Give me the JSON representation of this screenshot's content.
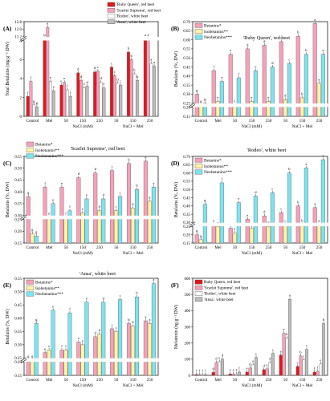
{
  "figure": {
    "title": "",
    "series_colors": [
      "#e4161c",
      "#f7a1b8",
      "#fff3a8",
      "#7de3ef",
      "#bdbdbd",
      "#ffffff"
    ]
  },
  "chart_data": [
    {
      "panel": "(A)",
      "type": "bar",
      "title": "",
      "ylabel": "Total Betalains (mg g⁻¹ DW)",
      "ylim": [
        0,
        12.8
      ],
      "axis_break": [
        8,
        11.2
      ],
      "yticks": [
        "0",
        "2",
        "4",
        "6",
        "8",
        "11.2",
        "12.0",
        "12.8"
      ],
      "categories": [
        "Control",
        "Mel",
        "50",
        "150",
        "250",
        "50",
        "150",
        "250"
      ],
      "groups": [
        "NaCl (mM)",
        "NaCl + Mel"
      ],
      "legend_position": "top-right",
      "series": [
        {
          "name": "'Ruby Queen', red beet",
          "color": "#e4161c",
          "values": [
            2.1,
            10.6,
            3.3,
            4.6,
            4.7,
            5.2,
            6.8,
            8.2
          ],
          "letters": [
            "f",
            "b",
            "e",
            "d",
            "d",
            "c",
            "b",
            "a"
          ]
        },
        {
          "name": "'Scarlet Supreme', red beet",
          "color": "#f7a1b8",
          "values": [
            3.7,
            12.2,
            3.6,
            3.8,
            4.8,
            4.3,
            6.0,
            9.0
          ],
          "letters": [
            "f",
            "a",
            "e",
            "d",
            "c",
            "c",
            "b",
            "a"
          ]
        },
        {
          "name": "'Rodeo', white beet",
          "color": "#ffffff",
          "values": [
            1.2,
            3.7,
            2.8,
            3.0,
            3.6,
            3.5,
            4.5,
            5.6
          ],
          "letters": [
            "g",
            "e",
            "f",
            "e",
            "d",
            "d",
            "b",
            "a"
          ]
        },
        {
          "name": "'Ansa', white beet",
          "color": "#bdbdbd",
          "values": [
            1.0,
            2.7,
            2.1,
            3.2,
            3.0,
            3.3,
            3.8,
            5.3
          ],
          "letters": [
            "g",
            "e",
            "f",
            "d",
            "e",
            "c",
            "b",
            "a"
          ]
        }
      ]
    },
    {
      "panel": "(B)",
      "type": "bar",
      "title": "'Ruby Queen', red beet",
      "ylabel": "Betalains (%, DW)",
      "ylim": [
        0.15,
        0.7
      ],
      "axis_break": [
        0.2,
        0.25
      ],
      "yticks": [
        "0.15",
        "0.20",
        "0.25",
        "0.30",
        "0.35",
        "0.40",
        "0.45",
        "0.50",
        "0.55",
        "0.60",
        "0.65",
        "0.70"
      ],
      "categories": [
        "Control",
        "Mel",
        "50",
        "150",
        "250",
        "50",
        "150",
        "250"
      ],
      "groups": [
        "NaCl (mM)",
        "NaCl + Mel"
      ],
      "legend_position": "top-left",
      "series": [
        {
          "name": "Betanins*",
          "color": "#f7a1b8",
          "values": [
            0.3,
            0.43,
            0.52,
            0.55,
            0.57,
            0.59,
            0.62,
            0.69
          ],
          "letters": [
            "g",
            "f",
            "e",
            "d",
            "d",
            "c",
            "b",
            "a"
          ]
        },
        {
          "name": "Isobetanins**",
          "color": "#fff3a8",
          "values": [
            0.24,
            0.26,
            0.24,
            0.26,
            0.26,
            0.27,
            0.28,
            0.36
          ],
          "letters": [
            "g",
            "e",
            "f",
            "e",
            "e",
            "d",
            "b",
            "a"
          ]
        },
        {
          "name": "Neobetanins***",
          "color": "#7de3ef",
          "values": [
            0.25,
            0.37,
            0.39,
            0.43,
            0.45,
            0.47,
            0.52,
            0.52
          ],
          "letters": [
            "g",
            "e",
            "f",
            "e",
            "d",
            "c",
            "b",
            "a"
          ]
        }
      ]
    },
    {
      "panel": "(C)",
      "type": "bar",
      "title": "'Scarlet Supreme', red beet",
      "ylabel": "Betalains (%, DW)",
      "ylim": [
        0.15,
        0.55
      ],
      "axis_break": [
        0.25,
        0.3
      ],
      "yticks": [
        "0.15",
        "0.20",
        "0.25",
        "0.30",
        "0.35",
        "0.40",
        "0.45",
        "0.50",
        "0.55"
      ],
      "categories": [
        "Control",
        "Mel",
        "50",
        "150",
        "250",
        "50",
        "150",
        "250"
      ],
      "groups": [
        "NaCl (mM)",
        "NaCl + Mel"
      ],
      "legend_position": "top-left",
      "series": [
        {
          "name": "Betanins*",
          "color": "#f7a1b8",
          "values": [
            0.38,
            0.42,
            0.42,
            0.46,
            0.48,
            0.49,
            0.52,
            0.53
          ],
          "letters": [
            "g",
            "f",
            "e",
            "d",
            "d",
            "c",
            "b",
            "a"
          ]
        },
        {
          "name": "Isobetanins**",
          "color": "#fff3a8",
          "values": [
            0.19,
            0.29,
            0.29,
            0.31,
            0.32,
            0.32,
            0.33,
            0.36
          ],
          "letters": [
            "g",
            "e",
            "f",
            "e",
            "d",
            "c",
            "b",
            "a"
          ]
        },
        {
          "name": "Neobetanins***",
          "color": "#7de3ef",
          "values": [
            0.18,
            0.35,
            0.32,
            0.37,
            0.37,
            0.38,
            0.41,
            0.42
          ],
          "letters": [
            "g",
            "e",
            "f",
            "e",
            "d",
            "c",
            "b",
            "a"
          ]
        }
      ]
    },
    {
      "panel": "(D)",
      "type": "bar",
      "title": "'Rodeo', white beet",
      "ylabel": "Betalains (%, DW)",
      "ylim": [
        0.15,
        0.7
      ],
      "axis_break": [
        0.25,
        0.3
      ],
      "yticks": [
        "0.15",
        "0.20",
        "0.25",
        "0.30",
        "0.35",
        "0.40",
        "0.45",
        "0.50",
        "0.55",
        "0.60",
        "0.65",
        "0.70"
      ],
      "categories": [
        "Control",
        "Mel",
        "50",
        "150",
        "250",
        "50",
        "150",
        "250"
      ],
      "groups": [
        "NaCl (mM)",
        "NaCl + Mel"
      ],
      "legend_position": "top-left",
      "series": [
        {
          "name": "Betanins*",
          "color": "#f7a1b8",
          "values": [
            0.2,
            0.28,
            0.24,
            0.32,
            0.34,
            0.36,
            0.4,
            0.39
          ],
          "letters": [
            "g",
            "e",
            "f",
            "e",
            "d",
            "c",
            "b",
            "a"
          ]
        },
        {
          "name": "Isobetanins**",
          "color": "#fff3a8",
          "values": [
            0.17,
            0.25,
            0.21,
            0.24,
            0.25,
            0.26,
            0.27,
            0.29
          ],
          "letters": [
            "g",
            "e",
            "f",
            "e",
            "d",
            "c",
            "b",
            "a"
          ]
        },
        {
          "name": "Neobetanins***",
          "color": "#7de3ef",
          "values": [
            0.41,
            0.54,
            0.42,
            0.46,
            0.48,
            0.6,
            0.63,
            0.68
          ],
          "letters": [
            "g",
            "f",
            "e",
            "d",
            "c",
            "b",
            "a",
            "a"
          ]
        }
      ]
    },
    {
      "panel": "(E)",
      "type": "bar",
      "title": "'Ansa', white beet",
      "ylabel": "Betalains (%, DW)",
      "ylim": [
        0.15,
        0.55
      ],
      "axis_break": [
        0.2,
        0.25
      ],
      "yticks": [
        "0.15",
        "0.20",
        "0.25",
        "0.30",
        "0.35",
        "0.40",
        "0.45",
        "0.50",
        "0.55"
      ],
      "categories": [
        "Control",
        "Mel",
        "50",
        "150",
        "250",
        "50",
        "150",
        "250"
      ],
      "groups": [
        "NaCl (mM)",
        "NaCl + Mel"
      ],
      "legend_position": "top-left",
      "series": [
        {
          "name": "Betanins*",
          "color": "#f7a1b8",
          "values": [
            0.23,
            0.27,
            0.28,
            0.31,
            0.33,
            0.36,
            0.38,
            0.39
          ],
          "letters": [
            "g",
            "e",
            "f",
            "e",
            "d",
            "c",
            "b",
            "a"
          ]
        },
        {
          "name": "Isobetanins**",
          "color": "#fff3a8",
          "values": [
            0.21,
            0.28,
            0.28,
            0.3,
            0.34,
            0.35,
            0.37,
            0.38
          ],
          "letters": [
            "g",
            "e",
            "f",
            "e",
            "d",
            "c",
            "b",
            "a"
          ]
        },
        {
          "name": "Neobetanins***",
          "color": "#7de3ef",
          "values": [
            0.38,
            0.43,
            0.42,
            0.46,
            0.46,
            0.47,
            0.48,
            0.53
          ],
          "letters": [
            "g",
            "e",
            "f",
            "e",
            "d",
            "c",
            "b",
            "a"
          ]
        }
      ]
    },
    {
      "panel": "(F)",
      "type": "bar",
      "title": "",
      "ylabel": "Melatonin (ng g⁻¹ DW)",
      "ylim": [
        0,
        600
      ],
      "yticks": [
        "0",
        "100",
        "200",
        "300",
        "400",
        "500",
        "600"
      ],
      "categories": [
        "Control",
        "Mel",
        "50",
        "150",
        "250",
        "50",
        "150",
        "250"
      ],
      "groups": [
        "NaCl (mM)",
        "NaCl + Mel"
      ],
      "legend_position": "top-left",
      "series": [
        {
          "name": "Ruby Queen, red beet",
          "color": "#e4161c",
          "values": [
            5,
            18,
            8,
            20,
            35,
            125,
            55,
            20
          ],
          "letters": [
            "f",
            "d",
            "f",
            "e",
            "d",
            "a",
            "c",
            "f"
          ]
        },
        {
          "name": "'Scarlet Supreme', red beet",
          "color": "#f7a1b8",
          "values": [
            5,
            80,
            8,
            45,
            40,
            260,
            120,
            25
          ],
          "letters": [
            "f",
            "d",
            "f",
            "d",
            "e",
            "a",
            "b",
            "f"
          ]
        },
        {
          "name": "'Rodeo', white beet",
          "color": "#ffffff",
          "values": [
            5,
            85,
            8,
            65,
            80,
            230,
            95,
            70
          ],
          "letters": [
            "f",
            "e",
            "f",
            "e",
            "d",
            "b",
            "c",
            "e"
          ]
        },
        {
          "name": "'Ansa', white beet",
          "color": "#bdbdbd",
          "values": [
            5,
            100,
            20,
            110,
            135,
            470,
            160,
            320
          ],
          "letters": [
            "f",
            "d",
            "f",
            "c",
            "c",
            "a",
            "c",
            "b"
          ]
        }
      ]
    }
  ]
}
